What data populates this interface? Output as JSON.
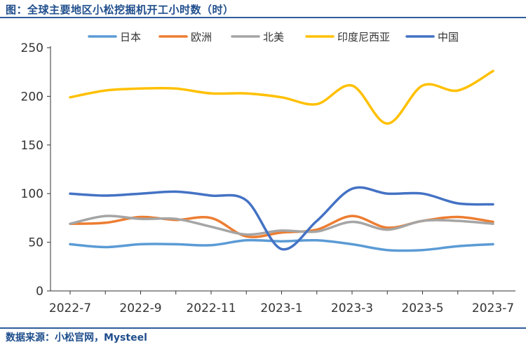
{
  "figure": {
    "title": "图：全球主要地区小松挖掘机开工小时数（时）",
    "source": "数据来源：小松官网，Mysteel"
  },
  "chart_data": {
    "type": "line",
    "title": "全球主要地区小松挖掘机开工小时数（时）",
    "xlabel": "",
    "ylabel": "",
    "ylim": [
      0,
      250
    ],
    "yticks": [
      0,
      50,
      100,
      150,
      200,
      250
    ],
    "x": [
      "2022-7",
      "2022-8",
      "2022-9",
      "2022-10",
      "2022-11",
      "2022-12",
      "2023-1",
      "2023-2",
      "2023-3",
      "2023-4",
      "2023-5",
      "2023-6",
      "2023-7"
    ],
    "xtick_labels": [
      "2022-7",
      "2022-9",
      "2022-11",
      "2023-1",
      "2023-3",
      "2023-5",
      "2023-7"
    ],
    "legend_position": "top",
    "series": [
      {
        "name": "日本",
        "color": "#5b9bd5",
        "values": [
          48,
          45,
          48,
          48,
          47,
          52,
          51,
          52,
          48,
          42,
          42,
          46,
          48
        ]
      },
      {
        "name": "欧洲",
        "color": "#ed7d31",
        "values": [
          69,
          70,
          76,
          73,
          75,
          56,
          60,
          63,
          77,
          65,
          72,
          76,
          71
        ]
      },
      {
        "name": "北美",
        "color": "#a5a5a5",
        "values": [
          69,
          77,
          74,
          74,
          66,
          58,
          62,
          61,
          71,
          63,
          72,
          72,
          69
        ]
      },
      {
        "name": "印度尼西亚",
        "color": "#ffc000",
        "values": [
          199,
          206,
          208,
          208,
          203,
          203,
          199,
          192,
          211,
          172,
          211,
          206,
          226
        ]
      },
      {
        "name": "中国",
        "color": "#4472c4",
        "values": [
          100,
          98,
          100,
          102,
          98,
          93,
          43,
          72,
          105,
          100,
          100,
          90,
          89
        ]
      }
    ]
  }
}
